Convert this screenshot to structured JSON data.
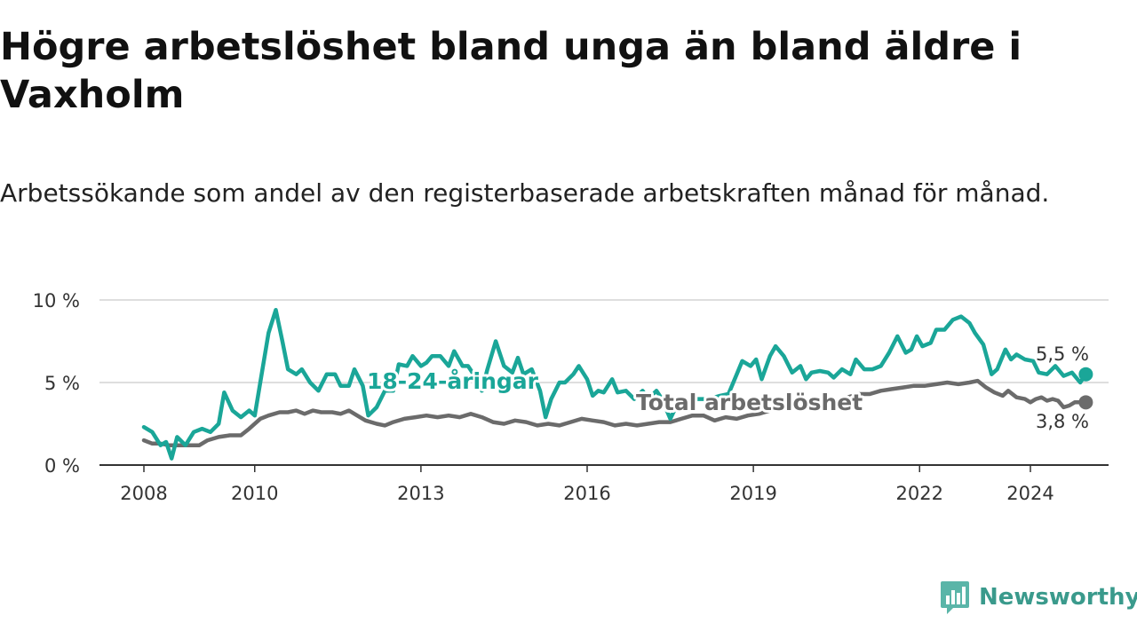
{
  "title": "Högre arbetslöshet bland unga än bland äldre i Vaxholm",
  "subtitle": "Arbetssökande som andel av den registerbaserade arbetskraften månad för månad.",
  "brand": {
    "name": "Newsworthy",
    "icon": "newsworthy-logo-icon"
  },
  "colors": {
    "young": "#1aa698",
    "total": "#6b6b6b",
    "grid": "#d3d3d3",
    "axis": "#333333"
  },
  "chart_data": {
    "type": "line",
    "title": "Högre arbetslöshet bland unga än bland äldre i Vaxholm",
    "xlabel": "",
    "ylabel": "",
    "x_ticks": [
      2008,
      2010,
      2013,
      2016,
      2019,
      2022,
      2024
    ],
    "y_ticks": [
      0,
      5,
      10
    ],
    "y_tick_labels": [
      "0 %",
      "5 %",
      "10 %"
    ],
    "ylim": [
      0,
      10
    ],
    "xlim": [
      2007.6,
      2025.5
    ],
    "grid": true,
    "series": [
      {
        "name": "18-24-åringar",
        "label": "18-24-åringar",
        "end_label": "5,5 %",
        "points": [
          [
            2008.0,
            2.3
          ],
          [
            2008.15,
            2.0
          ],
          [
            2008.3,
            1.2
          ],
          [
            2008.4,
            1.4
          ],
          [
            2008.5,
            0.4
          ],
          [
            2008.6,
            1.7
          ],
          [
            2008.75,
            1.2
          ],
          [
            2008.9,
            2.0
          ],
          [
            2009.05,
            2.2
          ],
          [
            2009.2,
            2.0
          ],
          [
            2009.35,
            2.5
          ],
          [
            2009.45,
            4.4
          ],
          [
            2009.6,
            3.3
          ],
          [
            2009.75,
            2.9
          ],
          [
            2009.9,
            3.3
          ],
          [
            2010.0,
            3.0
          ],
          [
            2010.15,
            6.0
          ],
          [
            2010.25,
            8.0
          ],
          [
            2010.38,
            9.4
          ],
          [
            2010.5,
            7.5
          ],
          [
            2010.6,
            5.8
          ],
          [
            2010.75,
            5.5
          ],
          [
            2010.85,
            5.8
          ],
          [
            2011.0,
            5.0
          ],
          [
            2011.15,
            4.5
          ],
          [
            2011.3,
            5.5
          ],
          [
            2011.45,
            5.5
          ],
          [
            2011.55,
            4.8
          ],
          [
            2011.7,
            4.8
          ],
          [
            2011.8,
            5.8
          ],
          [
            2011.95,
            4.8
          ],
          [
            2012.05,
            3.0
          ],
          [
            2012.2,
            3.5
          ],
          [
            2012.35,
            4.5
          ],
          [
            2012.5,
            4.5
          ],
          [
            2012.6,
            6.1
          ],
          [
            2012.75,
            6.0
          ],
          [
            2012.85,
            6.6
          ],
          [
            2013.0,
            6.0
          ],
          [
            2013.1,
            6.2
          ],
          [
            2013.2,
            6.6
          ],
          [
            2013.35,
            6.6
          ],
          [
            2013.5,
            6.0
          ],
          [
            2013.6,
            6.9
          ],
          [
            2013.75,
            6.0
          ],
          [
            2013.85,
            6.0
          ],
          [
            2013.95,
            5.5
          ],
          [
            2014.1,
            4.5
          ],
          [
            2014.2,
            5.8
          ],
          [
            2014.35,
            7.5
          ],
          [
            2014.5,
            6.0
          ],
          [
            2014.65,
            5.6
          ],
          [
            2014.75,
            6.5
          ],
          [
            2014.85,
            5.5
          ],
          [
            2015.0,
            5.8
          ],
          [
            2015.15,
            4.5
          ],
          [
            2015.25,
            2.9
          ],
          [
            2015.35,
            4.0
          ],
          [
            2015.5,
            5.0
          ],
          [
            2015.6,
            5.0
          ],
          [
            2015.75,
            5.5
          ],
          [
            2015.85,
            6.0
          ],
          [
            2016.0,
            5.2
          ],
          [
            2016.1,
            4.2
          ],
          [
            2016.2,
            4.5
          ],
          [
            2016.3,
            4.4
          ],
          [
            2016.45,
            5.2
          ],
          [
            2016.55,
            4.4
          ],
          [
            2016.7,
            4.5
          ],
          [
            2016.85,
            4.0
          ],
          [
            2017.0,
            4.5
          ],
          [
            2017.1,
            4.0
          ],
          [
            2017.25,
            4.5
          ],
          [
            2017.35,
            4.0
          ],
          [
            2017.5,
            2.8
          ],
          [
            2017.6,
            3.5
          ],
          [
            2017.7,
            3.9
          ],
          [
            2018.0,
            4.0
          ],
          [
            2018.2,
            4.0
          ],
          [
            2018.4,
            4.2
          ],
          [
            2018.55,
            4.3
          ],
          [
            2018.7,
            5.5
          ],
          [
            2018.8,
            6.3
          ],
          [
            2018.95,
            6.0
          ],
          [
            2019.05,
            6.4
          ],
          [
            2019.15,
            5.2
          ],
          [
            2019.3,
            6.6
          ],
          [
            2019.4,
            7.2
          ],
          [
            2019.55,
            6.6
          ],
          [
            2019.7,
            5.6
          ],
          [
            2019.85,
            6.0
          ],
          [
            2019.95,
            5.2
          ],
          [
            2020.05,
            5.6
          ],
          [
            2020.2,
            5.7
          ],
          [
            2020.35,
            5.6
          ],
          [
            2020.45,
            5.3
          ],
          [
            2020.6,
            5.8
          ],
          [
            2020.75,
            5.5
          ],
          [
            2020.85,
            6.4
          ],
          [
            2021.0,
            5.8
          ],
          [
            2021.15,
            5.8
          ],
          [
            2021.3,
            6.0
          ],
          [
            2021.45,
            6.8
          ],
          [
            2021.6,
            7.8
          ],
          [
            2021.75,
            6.8
          ],
          [
            2021.85,
            7.0
          ],
          [
            2021.95,
            7.8
          ],
          [
            2022.05,
            7.2
          ],
          [
            2022.2,
            7.4
          ],
          [
            2022.3,
            8.2
          ],
          [
            2022.45,
            8.2
          ],
          [
            2022.6,
            8.8
          ],
          [
            2022.75,
            9.0
          ],
          [
            2022.9,
            8.6
          ],
          [
            2023.0,
            8.0
          ],
          [
            2023.15,
            7.3
          ],
          [
            2023.3,
            5.5
          ],
          [
            2023.4,
            5.8
          ],
          [
            2023.55,
            7.0
          ],
          [
            2023.65,
            6.4
          ],
          [
            2023.75,
            6.7
          ],
          [
            2023.9,
            6.4
          ],
          [
            2024.05,
            6.3
          ],
          [
            2024.15,
            5.6
          ],
          [
            2024.3,
            5.5
          ],
          [
            2024.45,
            6.0
          ],
          [
            2024.6,
            5.4
          ],
          [
            2024.75,
            5.6
          ],
          [
            2024.9,
            5.0
          ],
          [
            2025.0,
            5.5
          ]
        ]
      },
      {
        "name": "Total arbetslöshet",
        "label": "Total arbetslöshet",
        "end_label": "3,8 %",
        "points": [
          [
            2008.0,
            1.5
          ],
          [
            2008.15,
            1.3
          ],
          [
            2008.3,
            1.3
          ],
          [
            2008.45,
            1.2
          ],
          [
            2008.6,
            1.2
          ],
          [
            2008.8,
            1.2
          ],
          [
            2009.0,
            1.2
          ],
          [
            2009.15,
            1.5
          ],
          [
            2009.35,
            1.7
          ],
          [
            2009.55,
            1.8
          ],
          [
            2009.75,
            1.8
          ],
          [
            2009.9,
            2.2
          ],
          [
            2010.1,
            2.8
          ],
          [
            2010.25,
            3.0
          ],
          [
            2010.45,
            3.2
          ],
          [
            2010.6,
            3.2
          ],
          [
            2010.75,
            3.3
          ],
          [
            2010.9,
            3.1
          ],
          [
            2011.05,
            3.3
          ],
          [
            2011.2,
            3.2
          ],
          [
            2011.4,
            3.2
          ],
          [
            2011.55,
            3.1
          ],
          [
            2011.7,
            3.3
          ],
          [
            2011.85,
            3.0
          ],
          [
            2012.0,
            2.7
          ],
          [
            2012.2,
            2.5
          ],
          [
            2012.35,
            2.4
          ],
          [
            2012.5,
            2.6
          ],
          [
            2012.7,
            2.8
          ],
          [
            2012.9,
            2.9
          ],
          [
            2013.1,
            3.0
          ],
          [
            2013.3,
            2.9
          ],
          [
            2013.5,
            3.0
          ],
          [
            2013.7,
            2.9
          ],
          [
            2013.9,
            3.1
          ],
          [
            2014.1,
            2.9
          ],
          [
            2014.3,
            2.6
          ],
          [
            2014.5,
            2.5
          ],
          [
            2014.7,
            2.7
          ],
          [
            2014.9,
            2.6
          ],
          [
            2015.1,
            2.4
          ],
          [
            2015.3,
            2.5
          ],
          [
            2015.5,
            2.4
          ],
          [
            2015.7,
            2.6
          ],
          [
            2015.9,
            2.8
          ],
          [
            2016.1,
            2.7
          ],
          [
            2016.3,
            2.6
          ],
          [
            2016.5,
            2.4
          ],
          [
            2016.7,
            2.5
          ],
          [
            2016.9,
            2.4
          ],
          [
            2017.1,
            2.5
          ],
          [
            2017.3,
            2.6
          ],
          [
            2017.5,
            2.6
          ],
          [
            2017.7,
            2.8
          ],
          [
            2017.9,
            3.0
          ],
          [
            2018.1,
            3.0
          ],
          [
            2018.3,
            2.7
          ],
          [
            2018.5,
            2.9
          ],
          [
            2018.7,
            2.8
          ],
          [
            2018.9,
            3.0
          ],
          [
            2019.1,
            3.1
          ],
          [
            2019.3,
            3.3
          ],
          [
            2019.5,
            3.5
          ],
          [
            2019.7,
            3.7
          ],
          [
            2019.9,
            3.8
          ],
          [
            2020.1,
            3.8
          ],
          [
            2020.3,
            3.6
          ],
          [
            2020.5,
            3.8
          ],
          [
            2020.7,
            4.1
          ],
          [
            2020.9,
            4.3
          ],
          [
            2021.1,
            4.3
          ],
          [
            2021.3,
            4.5
          ],
          [
            2021.5,
            4.6
          ],
          [
            2021.7,
            4.7
          ],
          [
            2021.9,
            4.8
          ],
          [
            2022.1,
            4.8
          ],
          [
            2022.3,
            4.9
          ],
          [
            2022.5,
            5.0
          ],
          [
            2022.7,
            4.9
          ],
          [
            2022.9,
            5.0
          ],
          [
            2023.05,
            5.1
          ],
          [
            2023.2,
            4.7
          ],
          [
            2023.35,
            4.4
          ],
          [
            2023.5,
            4.2
          ],
          [
            2023.6,
            4.5
          ],
          [
            2023.75,
            4.1
          ],
          [
            2023.9,
            4.0
          ],
          [
            2024.0,
            3.8
          ],
          [
            2024.1,
            4.0
          ],
          [
            2024.2,
            4.1
          ],
          [
            2024.3,
            3.9
          ],
          [
            2024.4,
            4.0
          ],
          [
            2024.5,
            3.9
          ],
          [
            2024.6,
            3.5
          ],
          [
            2024.7,
            3.6
          ],
          [
            2024.8,
            3.8
          ],
          [
            2025.0,
            3.8
          ]
        ]
      }
    ]
  }
}
